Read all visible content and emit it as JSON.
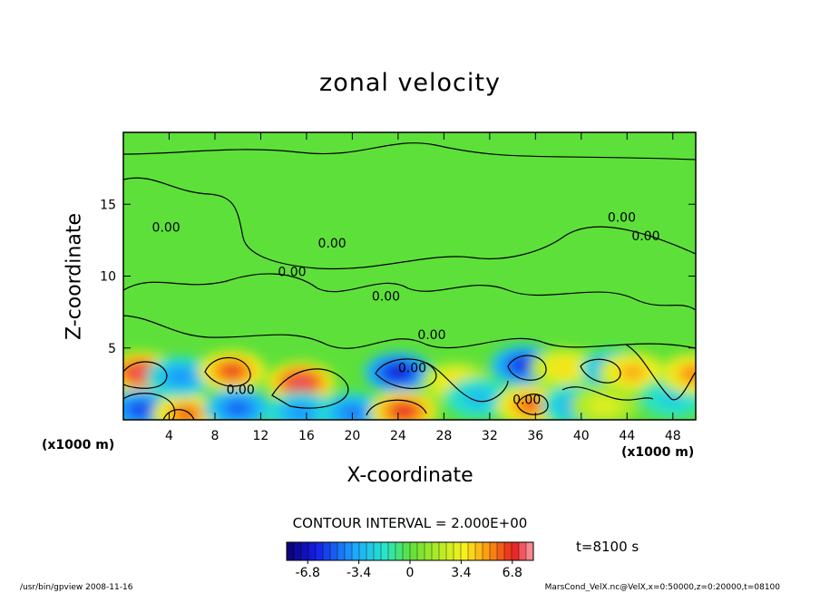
{
  "chart_data": {
    "type": "contour",
    "title": "zonal velocity",
    "xlabel": "X-coordinate",
    "ylabel": "Z-coordinate",
    "xunit": "(x1000 m)",
    "xlim": [
      0,
      50
    ],
    "ylim": [
      0,
      20
    ],
    "xticks": [
      4,
      8,
      12,
      16,
      20,
      24,
      28,
      32,
      36,
      40,
      44,
      48
    ],
    "yticks": [
      5,
      10,
      15
    ],
    "contour_interval_text": "CONTOUR INTERVAL = 2.000E+00",
    "contour_labels": [
      "0.00",
      "0.00",
      "0.00",
      "0.00",
      "0.00",
      "0.00",
      "0.00",
      "0.00",
      "0.00",
      "0.00"
    ],
    "colorbar": {
      "min": -8.2,
      "max": 8.2,
      "ticks": [
        -6.8,
        -3.4,
        0,
        3.4,
        6.8
      ],
      "tick_labels": [
        "-6.8",
        "-3.4",
        "0",
        "3.4",
        "6.8"
      ]
    },
    "cells": [
      {
        "x": 1.5,
        "z": 3.3,
        "v": 7.5
      },
      {
        "x": 1.5,
        "z": 0.7,
        "v": -5.5
      },
      {
        "x": 5.5,
        "z": 0.4,
        "v": 6.0
      },
      {
        "x": 5.0,
        "z": 3.0,
        "v": -4.0
      },
      {
        "x": 9.5,
        "z": 3.4,
        "v": 6.5
      },
      {
        "x": 10.0,
        "z": 0.8,
        "v": -5.0
      },
      {
        "x": 15.5,
        "z": 2.6,
        "v": 7.5
      },
      {
        "x": 15.5,
        "z": 0.5,
        "v": -4.0
      },
      {
        "x": 20.0,
        "z": 0.5,
        "v": -4.5
      },
      {
        "x": 24.0,
        "z": 3.3,
        "v": -6.5
      },
      {
        "x": 24.5,
        "z": 0.6,
        "v": 7.0
      },
      {
        "x": 29.0,
        "z": 2.6,
        "v": 4.0
      },
      {
        "x": 31.0,
        "z": 1.5,
        "v": -3.0
      },
      {
        "x": 35.0,
        "z": 3.8,
        "v": -6.0
      },
      {
        "x": 35.5,
        "z": 1.0,
        "v": 6.0
      },
      {
        "x": 38.5,
        "z": 3.6,
        "v": 4.0
      },
      {
        "x": 39.5,
        "z": 1.0,
        "v": -3.5
      },
      {
        "x": 43.0,
        "z": 3.5,
        "v": -4.5
      },
      {
        "x": 44.5,
        "z": 3.3,
        "v": 5.0
      },
      {
        "x": 42.0,
        "z": 1.0,
        "v": 3.0
      },
      {
        "x": 48.0,
        "z": 1.5,
        "v": -2.5
      },
      {
        "x": 49.8,
        "z": 3.2,
        "v": 5.5
      }
    ]
  },
  "time_label": "t=8100 s",
  "footer": {
    "left": "/usr/bin/gpview   2008-11-16",
    "right": "MarsCond_VelX.nc@VelX,x=0:50000,z=0:20000,t=08100"
  }
}
